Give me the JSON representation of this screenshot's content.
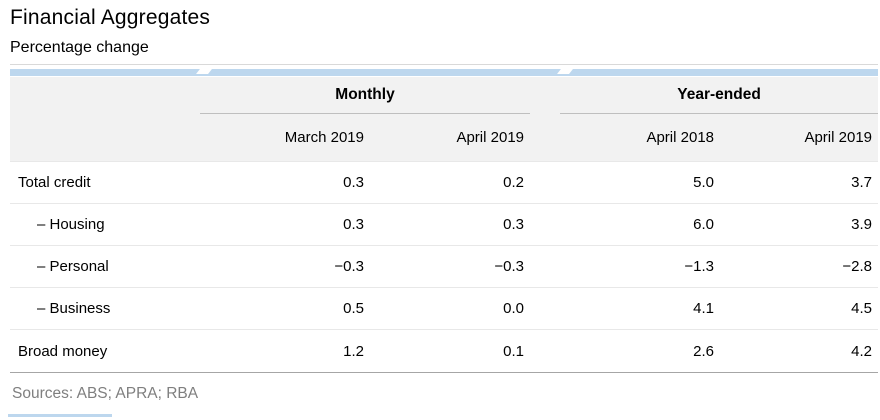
{
  "title": "Financial Aggregates",
  "subtitle": "Percentage change",
  "table": {
    "group_headers": [
      {
        "label": "Monthly"
      },
      {
        "label": "Year-ended"
      }
    ],
    "column_headers": [
      "March 2019",
      "April 2019",
      "April 2018",
      "April 2019"
    ],
    "rows": [
      {
        "label": "Total credit",
        "indent": false,
        "values": [
          "0.3",
          "0.2",
          "5.0",
          "3.7"
        ]
      },
      {
        "label": "– Housing",
        "indent": true,
        "values": [
          "0.3",
          "0.3",
          "6.0",
          "3.9"
        ]
      },
      {
        "label": "– Personal",
        "indent": true,
        "values": [
          "−0.3",
          "−0.3",
          "−1.3",
          "−2.8"
        ]
      },
      {
        "label": "– Business",
        "indent": true,
        "values": [
          "0.5",
          "0.0",
          "4.1",
          "4.5"
        ]
      },
      {
        "label": "Broad money",
        "indent": false,
        "values": [
          "1.2",
          "0.1",
          "2.6",
          "4.2"
        ]
      }
    ]
  },
  "footer": {
    "sources": "Sources: ABS; APRA; RBA"
  },
  "colors": {
    "accent_bar": "#BDD7EE",
    "header_bg": "#F2F2F2",
    "rule_light": "#E8E8E8",
    "rule_mid": "#BFBFBF",
    "rule_dark": "#A6A6A6",
    "muted": "#7F7F7F"
  },
  "chart_data": {
    "type": "table",
    "title": "Financial Aggregates",
    "subtitle": "Percentage change",
    "column_groups": [
      {
        "label": "Monthly",
        "columns": [
          "March 2019",
          "April 2019"
        ]
      },
      {
        "label": "Year-ended",
        "columns": [
          "April 2018",
          "April 2019"
        ]
      }
    ],
    "rows": [
      {
        "label": "Total credit",
        "values": [
          0.3,
          0.2,
          5.0,
          3.7
        ]
      },
      {
        "label": "Housing",
        "values": [
          0.3,
          0.3,
          6.0,
          3.9
        ]
      },
      {
        "label": "Personal",
        "values": [
          -0.3,
          -0.3,
          -1.3,
          -2.8
        ]
      },
      {
        "label": "Business",
        "values": [
          0.5,
          0.0,
          4.1,
          4.5
        ]
      },
      {
        "label": "Broad money",
        "values": [
          1.2,
          0.1,
          2.6,
          4.2
        ]
      }
    ],
    "sources": [
      "ABS",
      "APRA",
      "RBA"
    ]
  }
}
